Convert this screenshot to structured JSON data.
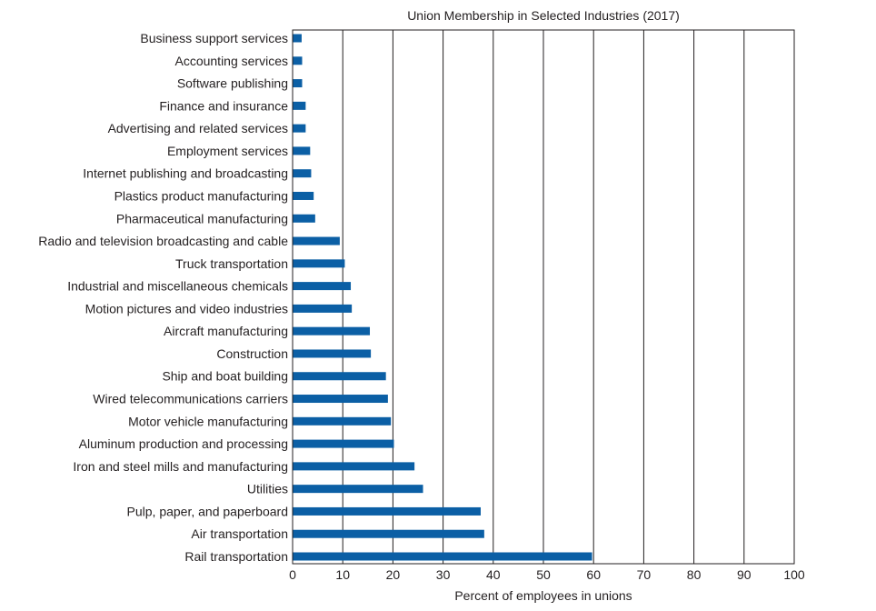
{
  "chart_data": {
    "type": "bar",
    "orientation": "horizontal",
    "title": "Union Membership in Selected Industries (2017)",
    "xlabel": "Percent of employees in unions",
    "ylabel": "",
    "xlim": [
      0,
      100
    ],
    "xticks": [
      0,
      10,
      20,
      30,
      40,
      50,
      60,
      70,
      80,
      90,
      100
    ],
    "grid": "vertical",
    "bar_color": "#0b5fa5",
    "categories": [
      "Business support services",
      "Accounting services",
      "Software publishing",
      "Finance and insurance",
      "Advertising and related services",
      "Employment services",
      "Internet publishing and broadcasting",
      "Plastics product manufacturing",
      "Pharmaceutical manufacturing",
      "Radio and television broadcasting and cable",
      "Truck transportation",
      "Industrial and miscellaneous chemicals",
      "Motion pictures and video industries",
      "Aircraft manufacturing",
      "Construction",
      "Ship and boat building",
      "Wired telecommunications carriers",
      "Motor vehicle manufacturing",
      "Aluminum production and processing",
      "Iron and steel mills and manufacturing",
      "Utilities",
      "Pulp, paper, and paperboard",
      "Air transportation",
      "Rail transportation"
    ],
    "values": [
      1.8,
      1.9,
      1.9,
      2.6,
      2.6,
      3.5,
      3.7,
      4.2,
      4.5,
      9.4,
      10.4,
      11.6,
      11.8,
      15.4,
      15.6,
      18.6,
      19.0,
      19.6,
      20.2,
      24.3,
      26.0,
      37.5,
      38.2,
      59.7
    ]
  }
}
